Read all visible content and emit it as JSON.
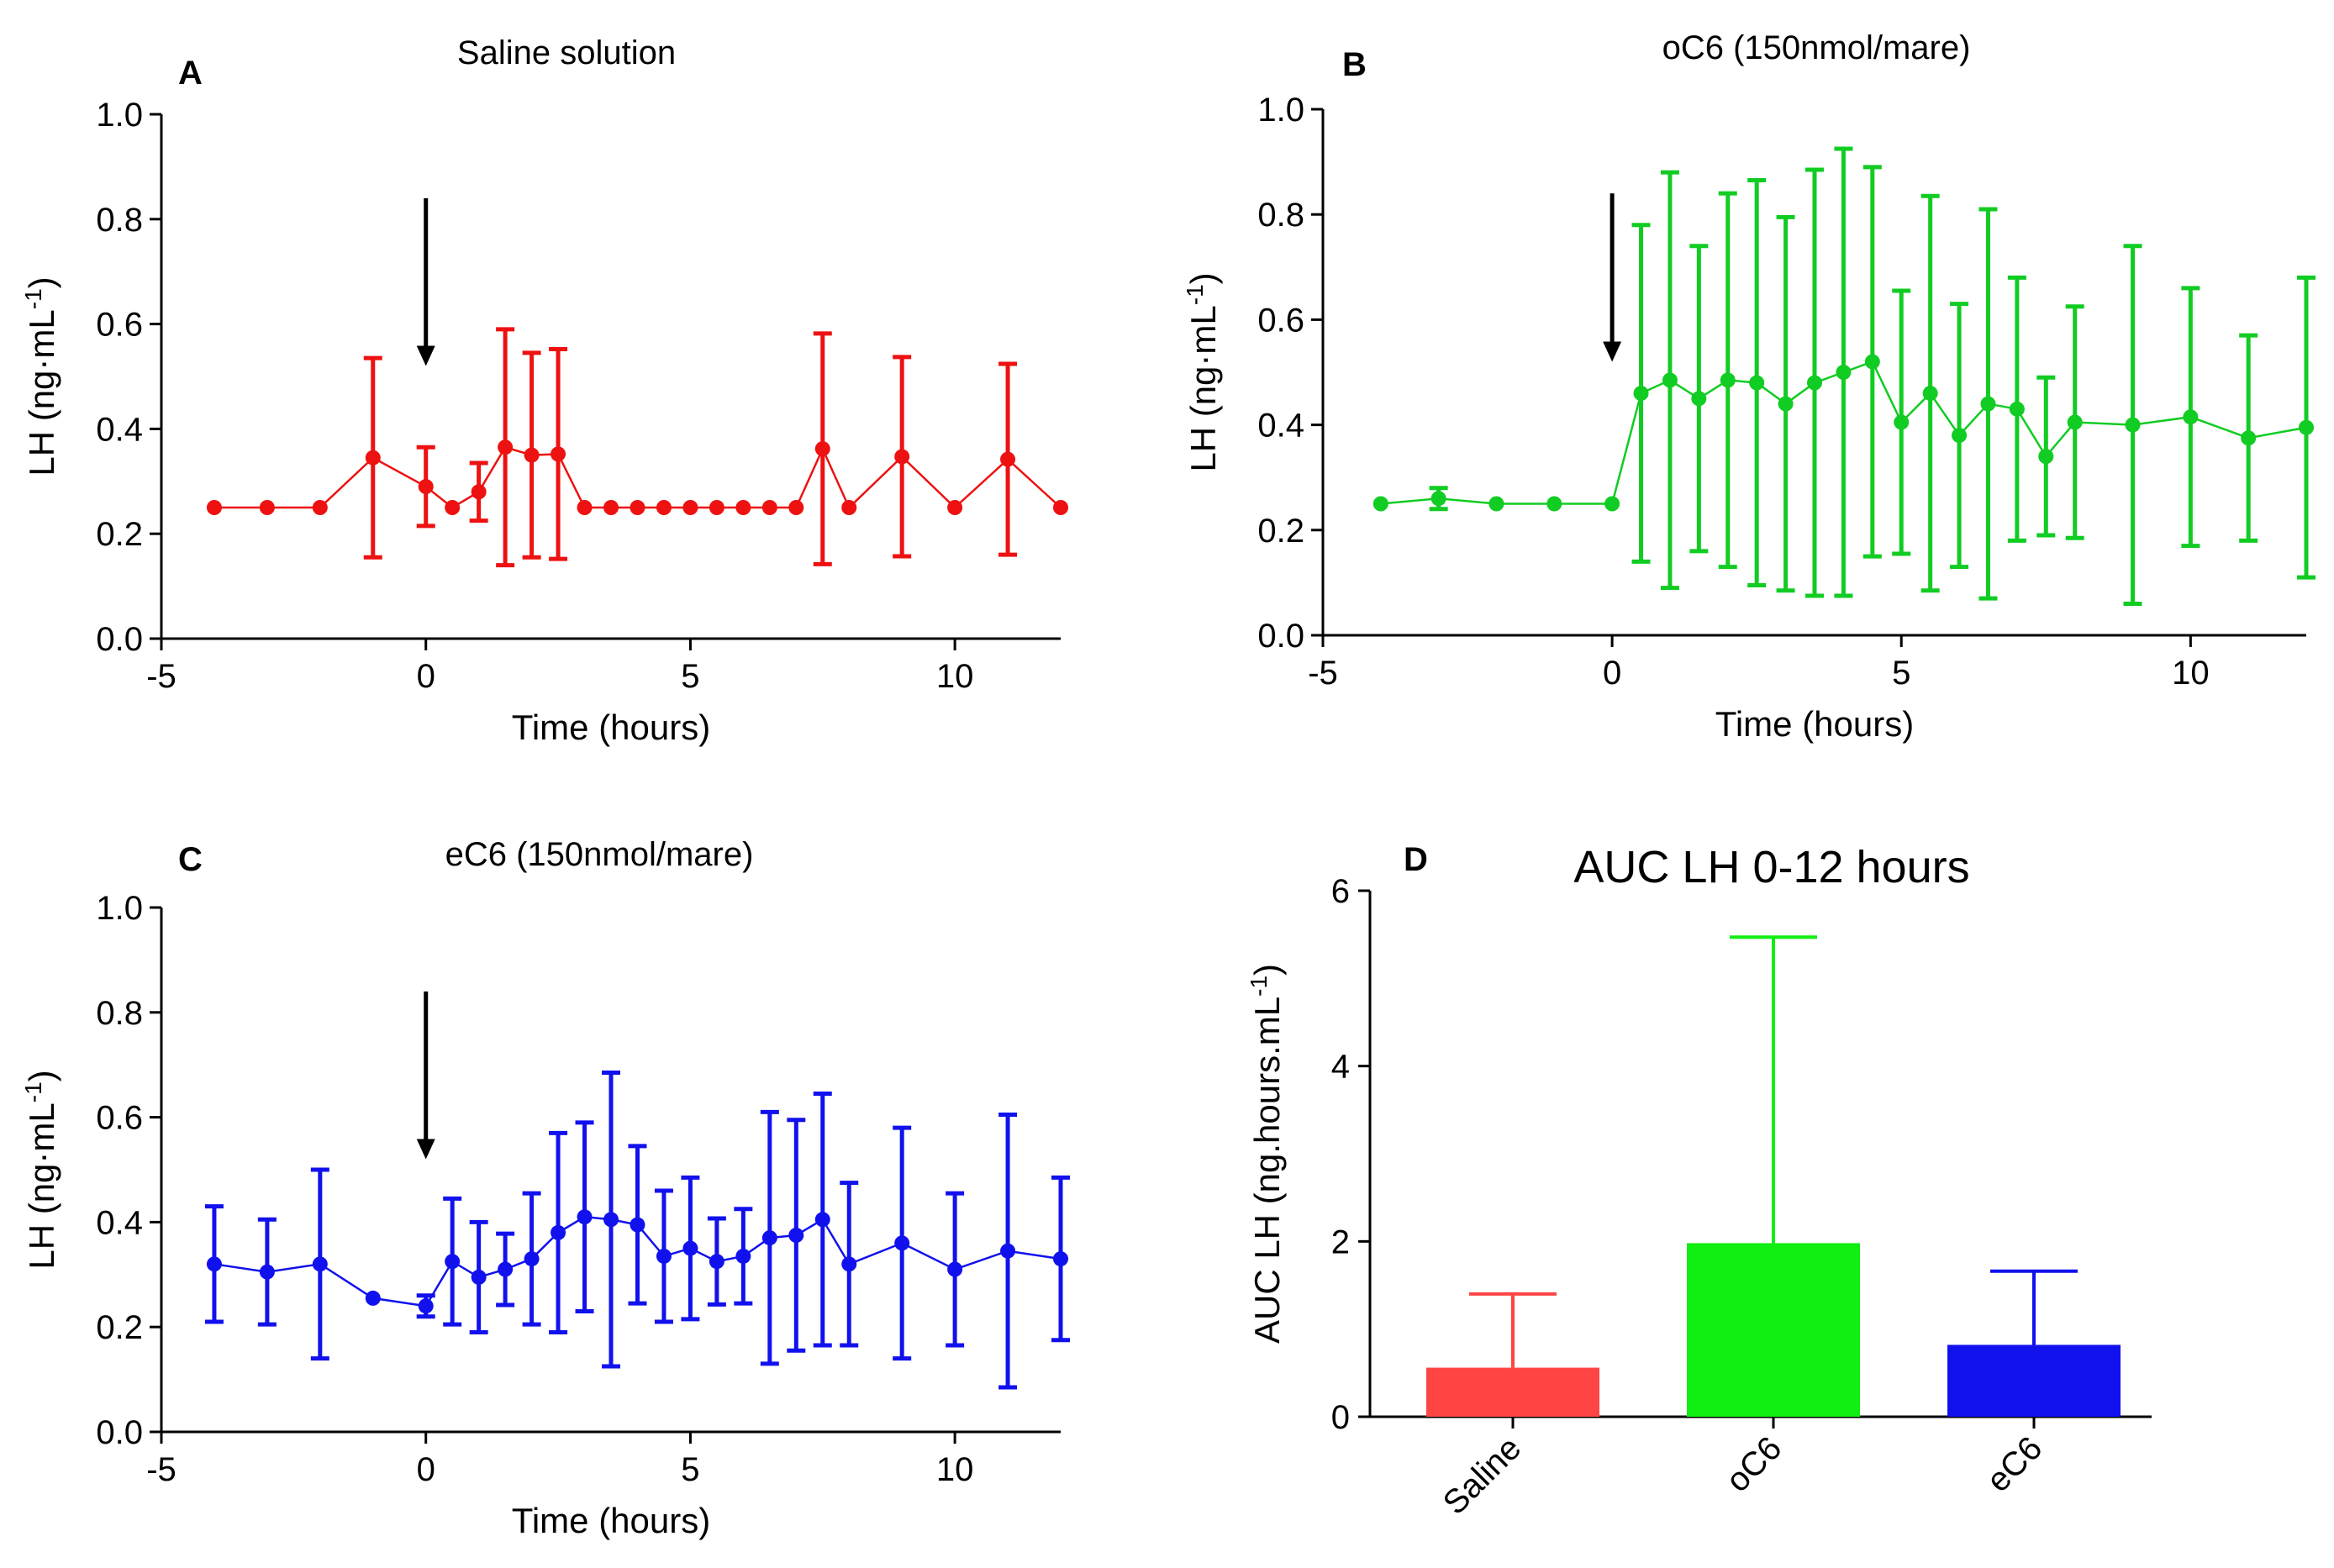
{
  "figure": {
    "panels": [
      {
        "letter": "A",
        "title": "Saline solution"
      },
      {
        "letter": "B",
        "title": "oC6 (150nmol/mare)"
      },
      {
        "letter": "C",
        "title": "eC6 (150nmol/mare)"
      },
      {
        "letter": "D",
        "title": "AUC LH 0-12 hours"
      }
    ]
  },
  "chart_data": [
    {
      "type": "line",
      "panel": "A",
      "title": "Saline solution",
      "xlabel": "Time (hours)",
      "ylabel": "LH (ng·mL",
      "ylabel_sup": "-1",
      "ylabel_end": ")",
      "xlim": [
        -5,
        12
      ],
      "ylim": [
        0,
        1
      ],
      "xticks": [
        -5,
        0,
        5,
        10
      ],
      "yticks": [
        0.0,
        0.2,
        0.4,
        0.6,
        0.8,
        1.0
      ],
      "xtick_labels": [
        "-5",
        "0",
        "5",
        "10"
      ],
      "ytick_labels": [
        "0.0",
        "0.2",
        "0.4",
        "0.6",
        "0.8",
        "1.0"
      ],
      "color": "#ee1111",
      "arrow_at": 0,
      "x": [
        -4,
        -3,
        -2,
        -1,
        0,
        0.5,
        1,
        1.5,
        2,
        2.5,
        3,
        3.5,
        4,
        4.5,
        5,
        5.5,
        6,
        6.5,
        7,
        7.5,
        8,
        9,
        10,
        11,
        12
      ],
      "y": [
        0.25,
        0.25,
        0.25,
        0.345,
        0.29,
        0.25,
        0.28,
        0.365,
        0.35,
        0.352,
        0.25,
        0.25,
        0.25,
        0.25,
        0.25,
        0.25,
        0.25,
        0.25,
        0.25,
        0.362,
        0.25,
        0.347,
        0.25,
        0.342,
        0.25
      ],
      "err": [
        0,
        0,
        0,
        0.19,
        0.075,
        0,
        0.055,
        0.225,
        0.195,
        0.2,
        0,
        0,
        0,
        0,
        0,
        0,
        0,
        0,
        0,
        0.22,
        0,
        0.19,
        0,
        0.182,
        0
      ]
    },
    {
      "type": "line",
      "panel": "B",
      "title": "oC6 (150nmol/mare)",
      "xlabel": "Time (hours)",
      "ylabel": "LH (ng·mL",
      "ylabel_sup": "-1",
      "ylabel_end": ")",
      "xlim": [
        -5,
        12
      ],
      "ylim": [
        0,
        1
      ],
      "xticks": [
        -5,
        0,
        5,
        10
      ],
      "yticks": [
        0.0,
        0.2,
        0.4,
        0.6,
        0.8,
        1.0
      ],
      "xtick_labels": [
        "-5",
        "0",
        "5",
        "10"
      ],
      "ytick_labels": [
        "0.0",
        "0.2",
        "0.4",
        "0.6",
        "0.8",
        "1.0"
      ],
      "color": "#11cc22",
      "arrow_at": 0,
      "x": [
        -4,
        -3,
        -2,
        -1,
        0,
        0.5,
        1,
        1.5,
        2,
        2.5,
        3,
        3.5,
        4,
        4.5,
        5,
        5.5,
        6,
        6.5,
        7,
        7.5,
        8,
        9,
        10,
        11,
        12
      ],
      "y": [
        0.25,
        0.26,
        0.25,
        0.25,
        0.25,
        0.46,
        0.485,
        0.45,
        0.485,
        0.48,
        0.44,
        0.48,
        0.5,
        0.52,
        0.405,
        0.46,
        0.38,
        0.44,
        0.43,
        0.34,
        0.405,
        0.4,
        0.415,
        0.375,
        0.395
      ],
      "err": [
        0,
        0.02,
        0,
        0,
        0,
        0.32,
        0.395,
        0.29,
        0.355,
        0.385,
        0.355,
        0.405,
        0.425,
        0.37,
        0.25,
        0.375,
        0.25,
        0.37,
        0.25,
        0.15,
        0.22,
        0.34,
        0.245,
        0.195,
        0.285
      ]
    },
    {
      "type": "line",
      "panel": "C",
      "title": "eC6 (150nmol/mare)",
      "xlabel": "Time (hours)",
      "ylabel": "LH (ng·mL",
      "ylabel_sup": "-1",
      "ylabel_end": ")",
      "xlim": [
        -5,
        12
      ],
      "ylim": [
        0,
        1
      ],
      "xticks": [
        -5,
        0,
        5,
        10
      ],
      "yticks": [
        0.0,
        0.2,
        0.4,
        0.6,
        0.8,
        1.0
      ],
      "xtick_labels": [
        "-5",
        "0",
        "5",
        "10"
      ],
      "ytick_labels": [
        "0.0",
        "0.2",
        "0.4",
        "0.6",
        "0.8",
        "1.0"
      ],
      "color": "#1111ee",
      "arrow_at": 0,
      "x": [
        -4,
        -3,
        -2,
        -1,
        0,
        0.5,
        1,
        1.5,
        2,
        2.5,
        3,
        3.5,
        4,
        4.5,
        5,
        5.5,
        6,
        6.5,
        7,
        7.5,
        8,
        9,
        10,
        11,
        12
      ],
      "y": [
        0.32,
        0.305,
        0.32,
        0.255,
        0.24,
        0.325,
        0.295,
        0.31,
        0.33,
        0.38,
        0.41,
        0.405,
        0.395,
        0.335,
        0.35,
        0.325,
        0.335,
        0.37,
        0.375,
        0.405,
        0.32,
        0.36,
        0.31,
        0.345,
        0.33
      ],
      "err": [
        0.11,
        0.1,
        0.18,
        0,
        0.02,
        0.12,
        0.105,
        0.068,
        0.125,
        0.19,
        0.18,
        0.28,
        0.15,
        0.125,
        0.135,
        0.082,
        0.09,
        0.24,
        0.22,
        0.24,
        0.155,
        0.22,
        0.145,
        0.26,
        0.155
      ]
    },
    {
      "type": "bar",
      "panel": "D",
      "title": "AUC LH 0-12 hours",
      "xlabel": "",
      "ylabel": "AUC LH (ng.hours.mL",
      "ylabel_sup": "-1",
      "ylabel_end": ")",
      "ylim": [
        0,
        6
      ],
      "yticks": [
        0,
        2,
        4,
        6
      ],
      "ytick_labels": [
        "0",
        "2",
        "4",
        "6"
      ],
      "categories": [
        "Saline",
        "oC6",
        "eC6"
      ],
      "values": [
        0.56,
        1.98,
        0.82
      ],
      "err": [
        0.84,
        3.49,
        0.84
      ],
      "colors": [
        "#ff4444",
        "#11ee11",
        "#1111ee"
      ]
    }
  ]
}
